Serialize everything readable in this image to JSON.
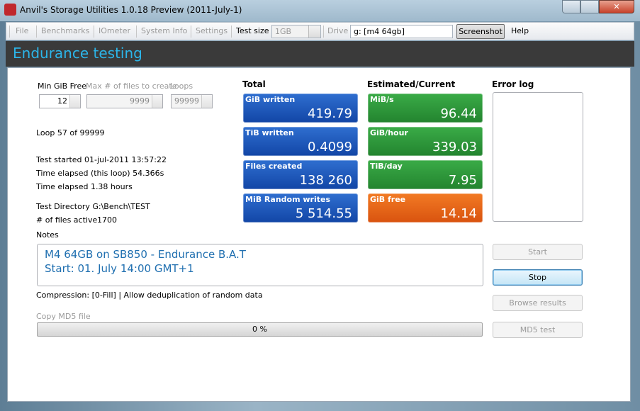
{
  "window": {
    "title": "Anvil's Storage Utilities 1.0.18 Preview (2011-July-1)"
  },
  "menu": {
    "items": [
      "File",
      "Benchmarks",
      "IOmeter",
      "System Info",
      "Settings"
    ],
    "test_size_label": "Test size",
    "test_size": "1GB",
    "drive_label": "Drive",
    "drive": "g: [m4 64gb]",
    "screenshot": "Screenshot",
    "help": "Help"
  },
  "header": {
    "title": "Endurance testing"
  },
  "settings": [
    {
      "label": "Min GiB Free",
      "value": "12"
    },
    {
      "label": "Max # of files to create",
      "value": "9999"
    },
    {
      "label": "Loops",
      "value": "99999"
    }
  ],
  "status": {
    "loop": "Loop 57 of 99999",
    "test_started": "Test started 01-jul-2011 13:57:22",
    "elapsed_loop": "Time elapsed (this loop) 54.366s",
    "elapsed": "Time elapsed 1.38 hours",
    "directory": "Test Directory G:\\Bench\\TEST",
    "files_active_label": "# of files active",
    "files_active": "1700"
  },
  "total": {
    "heading": "Total",
    "tiles": [
      {
        "label": "GiB written",
        "value": "419.79"
      },
      {
        "label": "TiB written",
        "value": "0.4099"
      },
      {
        "label": "Files created",
        "value": "138 260"
      },
      {
        "label": "MiB Random writes",
        "value": "5 514.55"
      }
    ]
  },
  "current": {
    "heading": "Estimated/Current",
    "tiles": [
      {
        "label": "MiB/s",
        "value": "96.44"
      },
      {
        "label": "GiB/hour",
        "value": "339.03"
      },
      {
        "label": "TiB/day",
        "value": "7.95"
      },
      {
        "label": "GiB free",
        "value": "14.14"
      }
    ]
  },
  "error_log": {
    "heading": "Error log"
  },
  "notes": {
    "label": "Notes",
    "lines": [
      "M4 64GB on SB850 - Endurance B.A.T",
      "Start: 01. July 14:00 GMT+1"
    ]
  },
  "compression": "Compression: [0-Fill] | Allow deduplication of random data",
  "copy": {
    "label": "Copy MD5 file",
    "progress": "0 %"
  },
  "buttons": [
    "Start",
    "Stop",
    "Browse results",
    "MD5 test"
  ]
}
